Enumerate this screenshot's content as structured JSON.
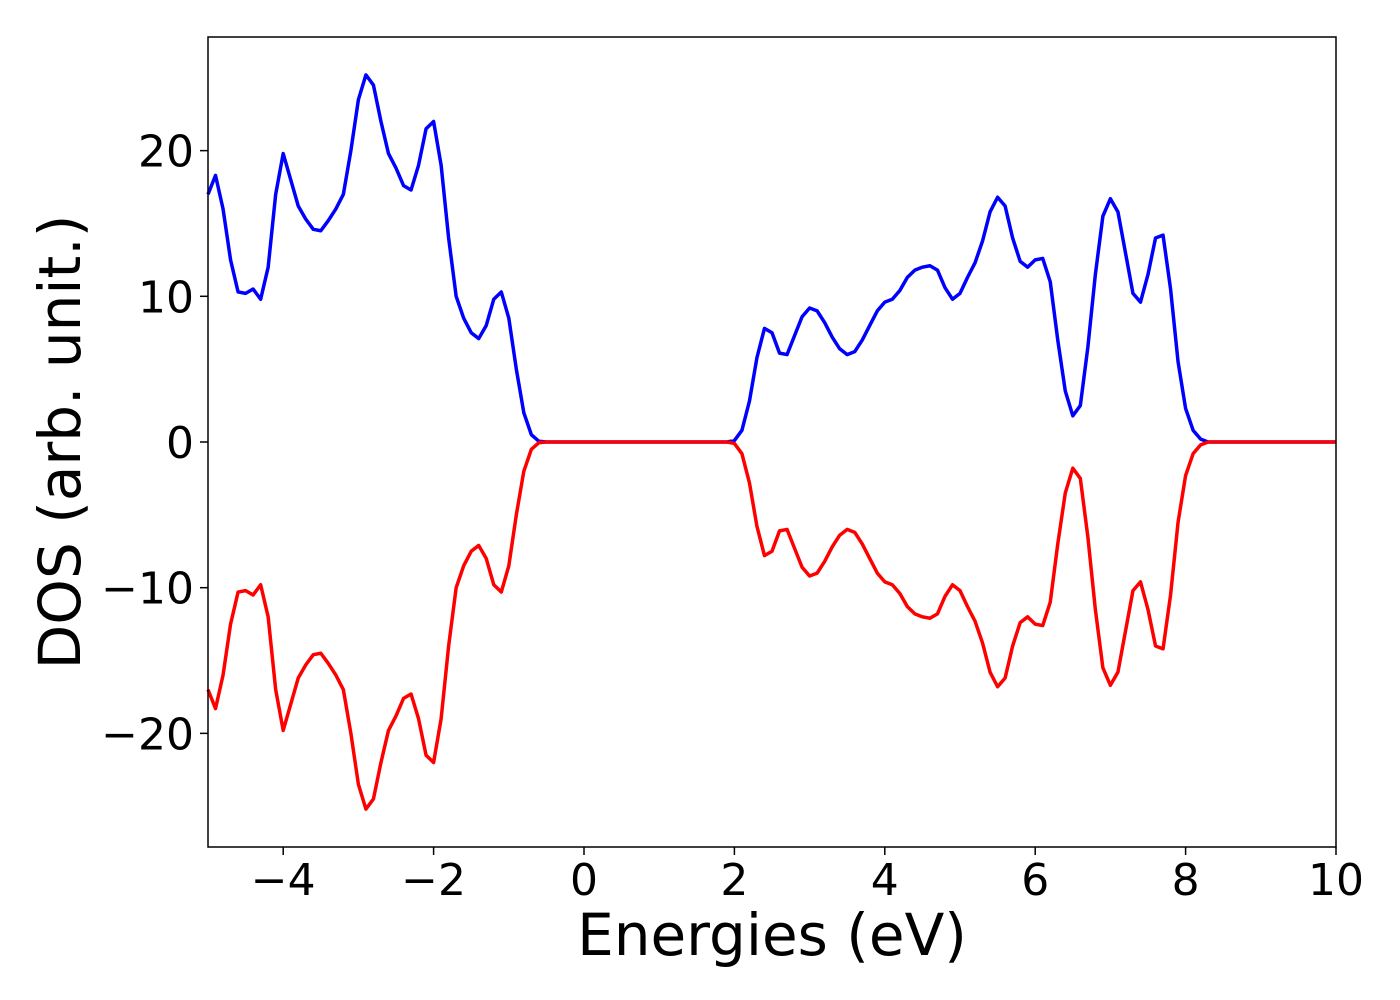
{
  "chart_data": {
    "type": "line",
    "xlabel": "Energies (eV)",
    "ylabel": "DOS (arb. unit.)",
    "xlim": [
      -5,
      10
    ],
    "ylim": [
      -27.8,
      27.8
    ],
    "xticks": [
      {
        "value": -4,
        "label": "−4"
      },
      {
        "value": -2,
        "label": "−2"
      },
      0,
      2,
      4,
      6,
      8,
      10
    ],
    "yticks": [
      {
        "value": -20,
        "label": "−20"
      },
      {
        "value": -10,
        "label": "−10"
      },
      0,
      10,
      20
    ],
    "x": [
      -5,
      -4.9,
      -4.8,
      -4.7,
      -4.6,
      -4.5,
      -4.4,
      -4.3,
      -4.2,
      -4.1,
      -4,
      -3.9,
      -3.8,
      -3.7,
      -3.6,
      -3.5,
      -3.4,
      -3.3,
      -3.2,
      -3.1,
      -3,
      -2.9,
      -2.8,
      -2.7,
      -2.6,
      -2.5,
      -2.4,
      -2.3,
      -2.2,
      -2.1,
      -2,
      -1.9,
      -1.8,
      -1.7,
      -1.6,
      -1.5,
      -1.4,
      -1.3,
      -1.2,
      -1.1,
      -1,
      -0.9,
      -0.8,
      -0.7,
      -0.6,
      -0.5,
      1.9,
      2,
      2.1,
      2.2,
      2.3,
      2.4,
      2.5,
      2.6,
      2.7,
      2.8,
      2.9,
      3,
      3.1,
      3.2,
      3.3,
      3.4,
      3.5,
      3.6,
      3.7,
      3.8,
      3.9,
      4,
      4.1,
      4.2,
      4.3,
      4.4,
      4.5,
      4.6,
      4.7,
      4.8,
      4.9,
      5,
      5.1,
      5.2,
      5.3,
      5.4,
      5.5,
      5.6,
      5.7,
      5.8,
      5.9,
      6,
      6.1,
      6.2,
      6.3,
      6.4,
      6.5,
      6.6,
      6.7,
      6.8,
      6.9,
      7,
      7.1,
      7.2,
      7.3,
      7.4,
      7.5,
      7.6,
      7.7,
      7.8,
      7.9,
      8,
      8.1,
      8.2,
      8.3,
      10
    ],
    "series": [
      {
        "color": "#0000ff",
        "values": [
          17,
          18.3,
          16,
          12.5,
          10.3,
          10.2,
          10.5,
          9.8,
          12,
          17,
          19.8,
          18,
          16.2,
          15.3,
          14.6,
          14.5,
          15.2,
          16,
          17,
          20,
          23.5,
          25.2,
          24.5,
          22,
          19.8,
          18.8,
          17.6,
          17.3,
          19,
          21.5,
          22,
          19,
          14,
          10,
          8.5,
          7.5,
          7.1,
          8,
          9.8,
          10.3,
          8.5,
          5,
          2,
          0.5,
          0.05,
          0,
          0,
          0.1,
          0.8,
          2.8,
          5.8,
          7.8,
          7.5,
          6.1,
          6,
          7.3,
          8.6,
          9.2,
          9,
          8.2,
          7.2,
          6.4,
          6,
          6.2,
          7,
          8,
          9,
          9.6,
          9.8,
          10.4,
          11.3,
          11.8,
          12,
          12.1,
          11.8,
          10.6,
          9.8,
          10.2,
          11.3,
          12.3,
          13.8,
          15.8,
          16.8,
          16.2,
          14,
          12.4,
          12,
          12.5,
          12.6,
          11,
          7,
          3.5,
          1.8,
          2.5,
          6.5,
          11.5,
          15.5,
          16.7,
          15.8,
          13,
          10.2,
          9.6,
          11.5,
          14,
          14.2,
          10.5,
          5.5,
          2.3,
          0.8,
          0.2,
          0,
          0
        ]
      },
      {
        "color": "#ff0000",
        "values": [
          -17,
          -18.3,
          -16,
          -12.5,
          -10.3,
          -10.2,
          -10.5,
          -9.8,
          -12,
          -17,
          -19.8,
          -18,
          -16.2,
          -15.3,
          -14.6,
          -14.5,
          -15.2,
          -16,
          -17,
          -20,
          -23.5,
          -25.2,
          -24.5,
          -22,
          -19.8,
          -18.8,
          -17.6,
          -17.3,
          -19,
          -21.5,
          -22,
          -19,
          -14,
          -10,
          -8.5,
          -7.5,
          -7.1,
          -8,
          -9.8,
          -10.3,
          -8.5,
          -5,
          -2,
          -0.5,
          -0.05,
          0,
          0,
          -0.1,
          -0.8,
          -2.8,
          -5.8,
          -7.8,
          -7.5,
          -6.1,
          -6,
          -7.3,
          -8.6,
          -9.2,
          -9,
          -8.2,
          -7.2,
          -6.4,
          -6,
          -6.2,
          -7,
          -8,
          -9,
          -9.6,
          -9.8,
          -10.4,
          -11.3,
          -11.8,
          -12,
          -12.1,
          -11.8,
          -10.6,
          -9.8,
          -10.2,
          -11.3,
          -12.3,
          -13.8,
          -15.8,
          -16.8,
          -16.2,
          -14,
          -12.4,
          -12,
          -12.5,
          -12.6,
          -11,
          -7,
          -3.5,
          -1.8,
          -2.5,
          -6.5,
          -11.5,
          -15.5,
          -16.7,
          -15.8,
          -13,
          -10.2,
          -9.6,
          -11.5,
          -14,
          -14.2,
          -10.5,
          -5.5,
          -2.3,
          -0.8,
          -0.2,
          0,
          0
        ]
      }
    ]
  }
}
